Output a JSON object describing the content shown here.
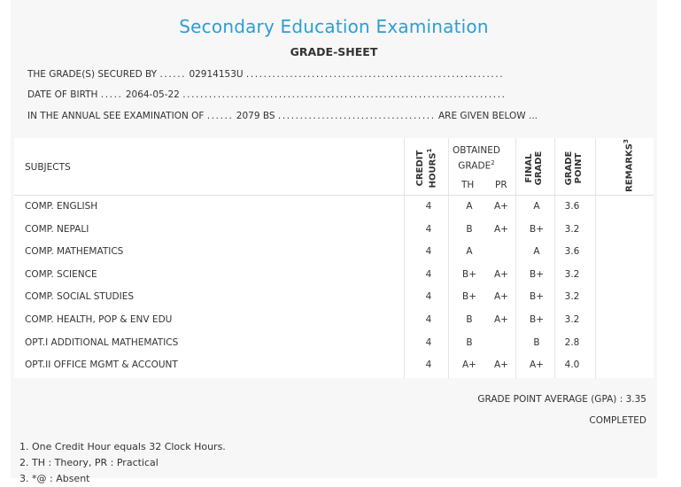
{
  "header": {
    "title": "Secondary Education Examination",
    "subtitle": "GRADE-SHEET"
  },
  "info": {
    "line1_label": "THE GRADE(S) SECURED BY",
    "line1_dots_before": "......",
    "line1_value": "02914153U",
    "line1_dots_after": "...........................................................",
    "line2_label": "DATE OF BIRTH",
    "line2_dots_before": ".....",
    "line2_value": "2064-05-22",
    "line2_dots_after": "..........................................................................",
    "line3_label": "IN THE ANNUAL SEE EXAMINATION OF",
    "line3_dots_before": "......",
    "line3_value": "2079 BS",
    "line3_dots_after": "....................................",
    "line3_suffix": "ARE GIVEN BELOW ..."
  },
  "table": {
    "columns": {
      "subjects": "SUBJECTS",
      "credit_line1": "CREDIT",
      "credit_line2": "HOURS",
      "credit_sup": "1",
      "obtained_line1": "OBTAINED",
      "obtained_line2": "GRADE",
      "obtained_sup": "2",
      "th": "TH",
      "pr": "PR",
      "final_line1": "FINAL",
      "final_line2": "GRADE",
      "gp_line1": "GRADE",
      "gp_line2": "POINT",
      "remarks": "REMARKS",
      "remarks_sup": "3"
    },
    "rows": [
      {
        "subject": "COMP. ENGLISH",
        "credit": "4",
        "th": "A",
        "pr": "A+",
        "final": "A",
        "gp": "3.6"
      },
      {
        "subject": "COMP. NEPALI",
        "credit": "4",
        "th": "B",
        "pr": "A+",
        "final": "B+",
        "gp": "3.2"
      },
      {
        "subject": "COMP. MATHEMATICS",
        "credit": "4",
        "th": "A",
        "pr": "",
        "final": "A",
        "gp": "3.6"
      },
      {
        "subject": "COMP. SCIENCE",
        "credit": "4",
        "th": "B+",
        "pr": "A+",
        "final": "B+",
        "gp": "3.2"
      },
      {
        "subject": "COMP. SOCIAL STUDIES",
        "credit": "4",
        "th": "B+",
        "pr": "A+",
        "final": "B+",
        "gp": "3.2"
      },
      {
        "subject": "COMP. HEALTH, POP & ENV EDU",
        "credit": "4",
        "th": "B",
        "pr": "A+",
        "final": "B+",
        "gp": "3.2"
      },
      {
        "subject": "OPT.I ADDITIONAL MATHEMATICS",
        "credit": "4",
        "th": "B",
        "pr": "",
        "final": "B",
        "gp": "2.8"
      },
      {
        "subject": "OPT.II OFFICE MGMT & ACCOUNT",
        "credit": "4",
        "th": "A+",
        "pr": "A+",
        "final": "A+",
        "gp": "4.0"
      }
    ]
  },
  "summary": {
    "gpa_label": "GRADE POINT AVERAGE (GPA) :",
    "gpa_value": "3.35",
    "status": "COMPLETED"
  },
  "notes": {
    "note1": "1. One Credit Hour equals 32 Clock Hours.",
    "note2": "2. TH : Theory, PR : Practical",
    "note3": "3. *@ : Absent"
  }
}
